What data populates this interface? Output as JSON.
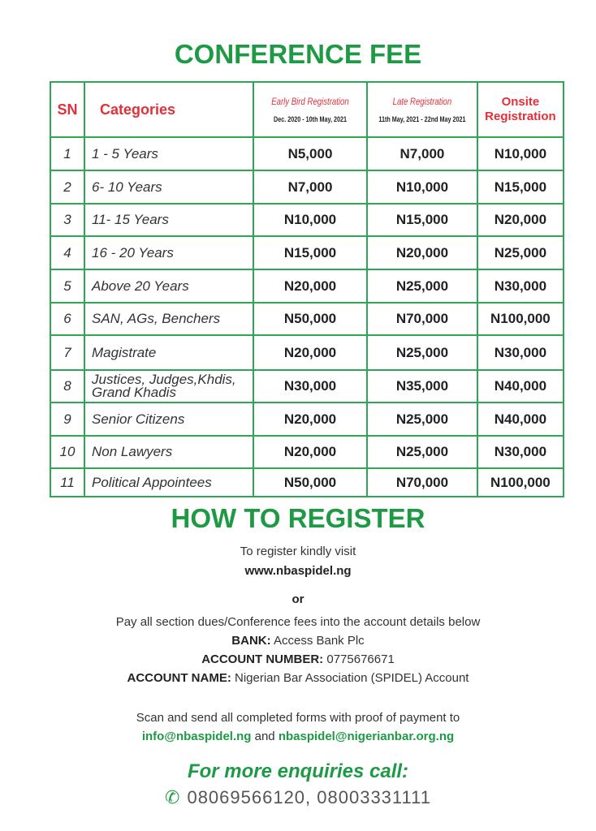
{
  "title": "CONFERENCE FEE",
  "table": {
    "headers": {
      "sn": "SN",
      "category": "Categories",
      "early": {
        "label": "Early Bird Registration",
        "dates": "Dec. 2020 - 10th May, 2021"
      },
      "late": {
        "label": "Late Registration",
        "dates": "11th May, 2021 - 22nd May 2021"
      },
      "onsite": {
        "line1": "Onsite",
        "line2": "Registration"
      }
    },
    "rows": [
      {
        "sn": "1",
        "category": "1 - 5 Years",
        "early": "N5,000",
        "late": "N7,000",
        "onsite": "N10,000"
      },
      {
        "sn": "2",
        "category": "6- 10 Years",
        "early": "N7,000",
        "late": "N10,000",
        "onsite": "N15,000"
      },
      {
        "sn": "3",
        "category": "11- 15 Years",
        "early": "N10,000",
        "late": "N15,000",
        "onsite": "N20,000"
      },
      {
        "sn": "4",
        "category": "16 - 20 Years",
        "early": "N15,000",
        "late": "N20,000",
        "onsite": "N25,000"
      },
      {
        "sn": "5",
        "category": "Above 20 Years",
        "early": "N20,000",
        "late": "N25,000",
        "onsite": "N30,000"
      },
      {
        "sn": "6",
        "category": "SAN, AGs, Benchers",
        "early": "N50,000",
        "late": "N70,000",
        "onsite": "N100,000"
      },
      {
        "sn": "7",
        "category": "Magistrate",
        "early": "N20,000",
        "late": "N25,000",
        "onsite": "N30,000"
      },
      {
        "sn": "8",
        "category": "Justices, Judges,Khdis, Grand Khadis",
        "early": "N30,000",
        "late": "N35,000",
        "onsite": "N40,000"
      },
      {
        "sn": "9",
        "category": "Senior Citizens",
        "early": "N20,000",
        "late": "N25,000",
        "onsite": "N40,000"
      },
      {
        "sn": "10",
        "category": "Non Lawyers",
        "early": "N20,000",
        "late": "N25,000",
        "onsite": "N30,000"
      },
      {
        "sn": "11",
        "category": "Political Appointees",
        "early": "N50,000",
        "late": "N70,000",
        "onsite": "N100,000"
      }
    ]
  },
  "register": {
    "title": "HOW TO REGISTER",
    "visit_text": "To register kindly visit",
    "website": "www.nbaspidel.ng",
    "or": "or",
    "pay_text": "Pay all section dues/Conference fees into the account details below",
    "bank_label": "BANK:",
    "bank_value": "Access Bank Plc",
    "acct_num_label": "ACCOUNT NUMBER:",
    "acct_num_value": "0775676671",
    "acct_name_label": "ACCOUNT NAME:",
    "acct_name_value": "Nigerian Bar Association (SPIDEL) Account",
    "scan_text": "Scan and send all completed forms with proof of payment to",
    "email1": "info@nbaspidel.ng",
    "and": "and",
    "email2": "nbaspidel@nigerianbar.org.ng"
  },
  "enquiries": {
    "title": "For more enquiries call:",
    "icon": "phone-icon",
    "phones": "08069566120, 08003331111"
  }
}
